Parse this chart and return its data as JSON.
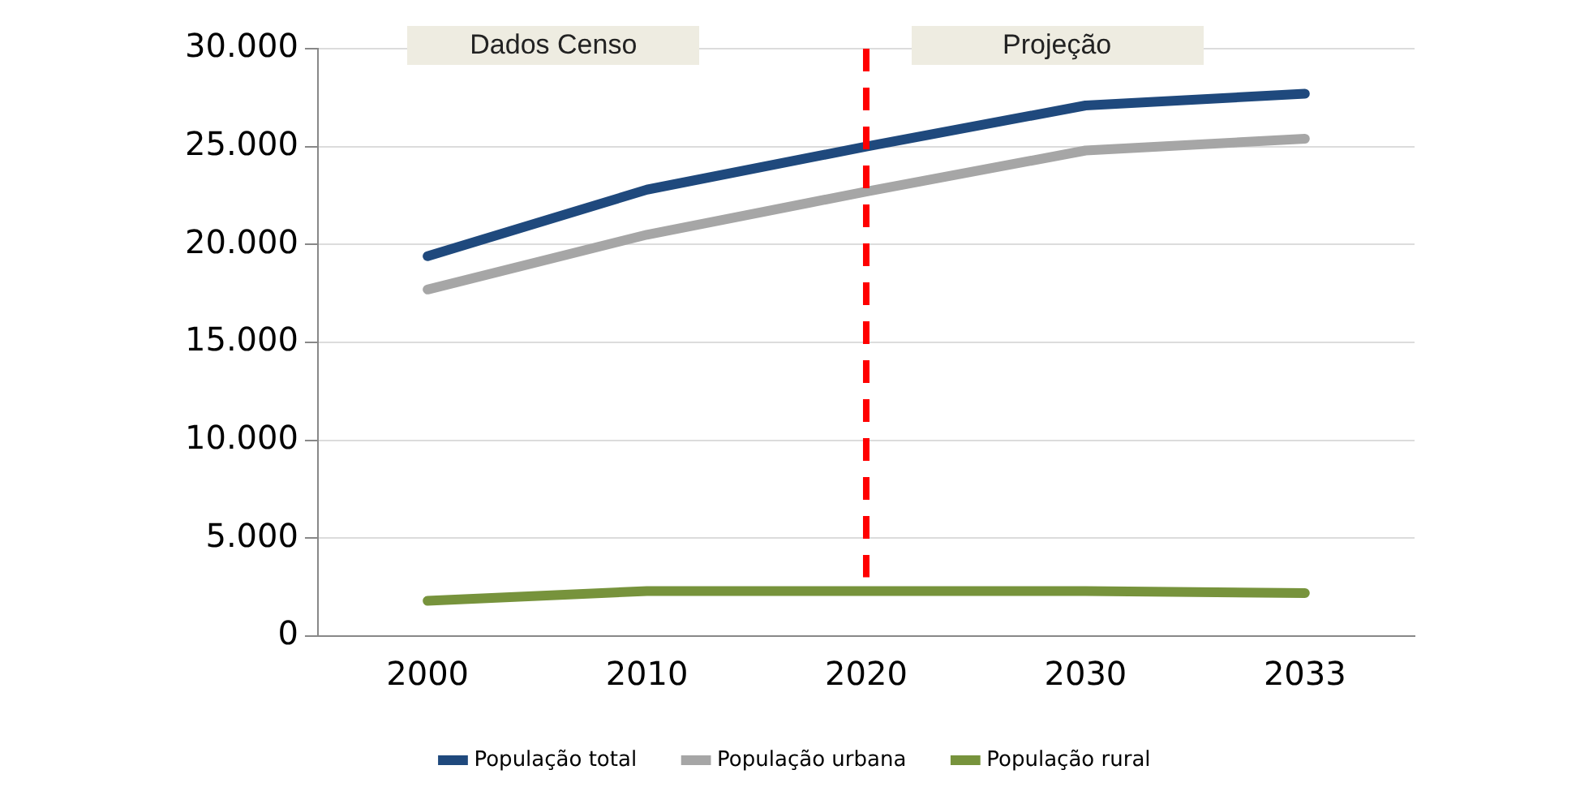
{
  "chart_data": {
    "type": "line",
    "categories": [
      "2000",
      "2010",
      "2020",
      "2030",
      "2033"
    ],
    "series": [
      {
        "name": "População total",
        "color": "#1f497d",
        "values": [
          19400,
          22800,
          25000,
          27100,
          27700
        ]
      },
      {
        "name": "População urbana",
        "color": "#a6a6a6",
        "values": [
          17700,
          20500,
          22700,
          24800,
          25400
        ]
      },
      {
        "name": "População rural",
        "color": "#77933c",
        "values": [
          1800,
          2300,
          2300,
          2300,
          2200
        ]
      }
    ],
    "ylim": [
      0,
      30000
    ],
    "yticks": [
      0,
      {
        "value": 5000,
        "label": "5.000"
      },
      {
        "value": 10000,
        "label": "10.000"
      },
      {
        "value": 15000,
        "label": "15.000"
      },
      {
        "value": 20000,
        "label": "20.000"
      },
      {
        "value": 25000,
        "label": "25.000"
      },
      {
        "value": 30000,
        "label": "30.000"
      }
    ],
    "grid": "y",
    "legend": "bottom",
    "marker": "none",
    "line_style": "solid",
    "ref_lines": [
      {
        "axis": "x",
        "value": "2020",
        "color": "#ff0000",
        "line_style": "dashed"
      }
    ],
    "annotations": [
      "Dados Censo",
      "Projeção"
    ]
  }
}
